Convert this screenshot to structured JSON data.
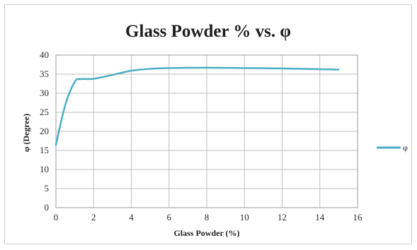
{
  "chart_data": {
    "type": "line",
    "title": "Glass Powder % vs. φ",
    "xlabel": "Glass Powder  (%)",
    "ylabel": "φ (Degree)",
    "xlim": [
      0,
      16
    ],
    "ylim": [
      0,
      40
    ],
    "x_ticks": [
      0,
      2,
      4,
      6,
      8,
      10,
      12,
      14,
      16
    ],
    "y_ticks": [
      0,
      5,
      10,
      15,
      20,
      25,
      30,
      35,
      40
    ],
    "grid": true,
    "legend_position": "right",
    "series": [
      {
        "name": "φ",
        "color": "#4bacc6",
        "x": [
          0,
          0.5,
          1,
          1.3,
          2,
          3,
          4,
          5,
          6,
          8,
          10,
          12,
          14,
          15
        ],
        "y": [
          16.5,
          27,
          33,
          33.7,
          33.8,
          34.8,
          35.9,
          36.4,
          36.6,
          36.7,
          36.6,
          36.5,
          36.3,
          36.2
        ]
      }
    ]
  }
}
